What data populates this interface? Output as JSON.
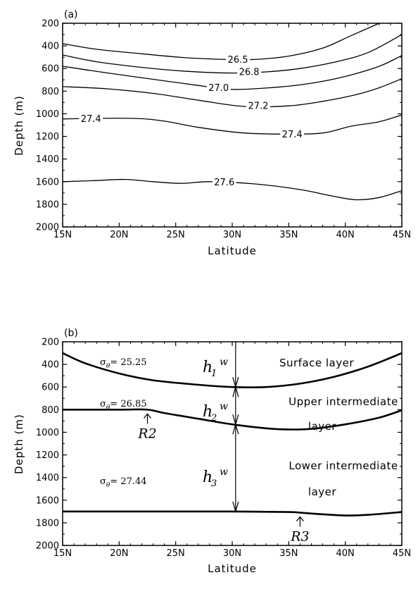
{
  "chart_data": [
    {
      "type": "line",
      "panel_label": "(a)",
      "xlabel": "Latitude",
      "ylabel": "Depth (m)",
      "xlim": [
        15,
        45
      ],
      "ylim": [
        2000,
        200
      ],
      "x_ticks": [
        "15N",
        "20N",
        "25N",
        "30N",
        "35N",
        "40N",
        "45N"
      ],
      "y_ticks": [
        "200",
        "400",
        "600",
        "800",
        "1000",
        "1200",
        "1400",
        "1600",
        "1800",
        "2000"
      ],
      "grid": false,
      "series": [
        {
          "name": "26.5",
          "points": [
            [
              15,
              380
            ],
            [
              18,
              430
            ],
            [
              22,
              470
            ],
            [
              26,
              505
            ],
            [
              29.5,
              520
            ],
            [
              32,
              520
            ],
            [
              35,
              490
            ],
            [
              38,
              420
            ],
            [
              40.5,
              310
            ],
            [
              43,
              200
            ]
          ]
        },
        {
          "name": "26.8",
          "points": [
            [
              15,
              480
            ],
            [
              18,
              540
            ],
            [
              22,
              590
            ],
            [
              26,
              625
            ],
            [
              30,
              640
            ],
            [
              33,
              630
            ],
            [
              36,
              600
            ],
            [
              39,
              545
            ],
            [
              42,
              460
            ],
            [
              45,
              300
            ]
          ]
        },
        {
          "name": "27.0",
          "points": [
            [
              15,
              580
            ],
            [
              19,
              640
            ],
            [
              23,
              695
            ],
            [
              27,
              750
            ],
            [
              30,
              785
            ],
            [
              34,
              765
            ],
            [
              37,
              730
            ],
            [
              40,
              670
            ],
            [
              43,
              580
            ],
            [
              45,
              485
            ]
          ]
        },
        {
          "name": "27.2",
          "points": [
            [
              15,
              760
            ],
            [
              19,
              780
            ],
            [
              23,
              820
            ],
            [
              27,
              880
            ],
            [
              31,
              935
            ],
            [
              35,
              930
            ],
            [
              38,
              890
            ],
            [
              41,
              830
            ],
            [
              43,
              770
            ],
            [
              45,
              690
            ]
          ]
        },
        {
          "name": "27.4",
          "points": [
            [
              15,
              1045
            ],
            [
              21,
              1040
            ],
            [
              24,
              1065
            ],
            [
              27,
              1120
            ],
            [
              31,
              1170
            ],
            [
              35,
              1180
            ],
            [
              38,
              1170
            ],
            [
              40.5,
              1110
            ],
            [
              43,
              1070
            ],
            [
              45,
              1010
            ]
          ]
        },
        {
          "name": "27.6",
          "points": [
            [
              15,
              1600
            ],
            [
              18,
              1590
            ],
            [
              20.5,
              1580
            ],
            [
              23,
              1600
            ],
            [
              25.5,
              1615
            ],
            [
              28,
              1600
            ],
            [
              32,
              1620
            ],
            [
              36,
              1670
            ],
            [
              39,
              1730
            ],
            [
              41,
              1760
            ],
            [
              43,
              1740
            ],
            [
              45,
              1680
            ]
          ]
        }
      ],
      "contour_labels": [
        {
          "text": "26.5",
          "x": 30.5,
          "y": 520
        },
        {
          "text": "26.8",
          "x": 31.5,
          "y": 630
        },
        {
          "text": "27.0",
          "x": 28.8,
          "y": 770
        },
        {
          "text": "27.2",
          "x": 32.3,
          "y": 930
        },
        {
          "text": "27.4",
          "x": 17.5,
          "y": 1045
        },
        {
          "text": "27.4",
          "x": 35.3,
          "y": 1180
        },
        {
          "text": "27.6",
          "x": 29.3,
          "y": 1605
        }
      ]
    },
    {
      "type": "line",
      "panel_label": "(b)",
      "xlabel": "Latitude",
      "ylabel": "Depth (m)",
      "xlim": [
        15,
        45
      ],
      "ylim": [
        2000,
        200
      ],
      "x_ticks": [
        "15N",
        "20N",
        "25N",
        "30N",
        "35N",
        "40N",
        "45N"
      ],
      "y_ticks": [
        "200",
        "400",
        "600",
        "800",
        "1000",
        "1200",
        "1400",
        "1600",
        "1800",
        "2000"
      ],
      "grid": false,
      "series": [
        {
          "name": "σθ= 25.25",
          "points": [
            [
              15,
              300
            ],
            [
              17,
              390
            ],
            [
              20,
              480
            ],
            [
              23,
              540
            ],
            [
              27,
              580
            ],
            [
              30,
              600
            ],
            [
              33,
              600
            ],
            [
              36,
              570
            ],
            [
              39,
              510
            ],
            [
              42,
              420
            ],
            [
              45,
              300
            ]
          ]
        },
        {
          "name": "σθ= 26.85",
          "points": [
            [
              15,
              800
            ],
            [
              20,
              800
            ],
            [
              22.5,
              800
            ],
            [
              24,
              830
            ],
            [
              27,
              880
            ],
            [
              30,
              930
            ],
            [
              33,
              965
            ],
            [
              35,
              975
            ],
            [
              37,
              970
            ],
            [
              40,
              930
            ],
            [
              43,
              870
            ],
            [
              45,
              805
            ]
          ]
        },
        {
          "name": "σθ= 27.44",
          "points": [
            [
              15,
              1700
            ],
            [
              20,
              1700
            ],
            [
              25,
              1700
            ],
            [
              30,
              1700
            ],
            [
              35,
              1705
            ],
            [
              36,
              1710
            ],
            [
              38,
              1725
            ],
            [
              40,
              1735
            ],
            [
              42,
              1730
            ],
            [
              45,
              1705
            ]
          ]
        }
      ],
      "layer_labels": [
        "Surface layer",
        "Upper intermediate",
        "layer",
        "Lower intermediate",
        "layer"
      ],
      "thickness_labels": [
        {
          "base": "h",
          "sub": "1",
          "sup": "w"
        },
        {
          "base": "h",
          "sub": "2",
          "sup": "w"
        },
        {
          "base": "h",
          "sub": "3",
          "sup": "w"
        }
      ],
      "markers": [
        {
          "text": "R2",
          "x": 22.5,
          "y": 800
        },
        {
          "text": "R3",
          "x": 36,
          "y": 1710
        }
      ]
    }
  ]
}
